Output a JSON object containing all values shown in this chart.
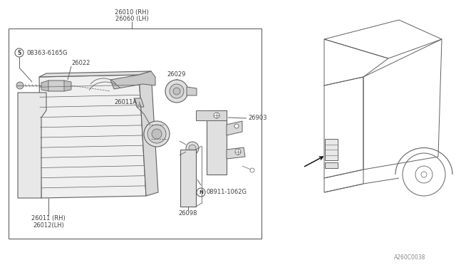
{
  "bg_color": "#ffffff",
  "diagram_note": "A260C0038",
  "parts": {
    "26010_label": "26010 (RH)",
    "26060_label": "26060 (LH)",
    "08363_label": "08363-6165G",
    "26022_label": "26022",
    "26029_label": "26029",
    "26011A_label": "26011A",
    "26903_label": "26903",
    "26011_label": "26011 (RH)",
    "26012_label": "26012(LH)",
    "08911_label": "08911-1062G",
    "26098_label": "26098"
  },
  "lc": "#606060",
  "tc": "#404040",
  "fs": 7.0,
  "fs_small": 6.0
}
